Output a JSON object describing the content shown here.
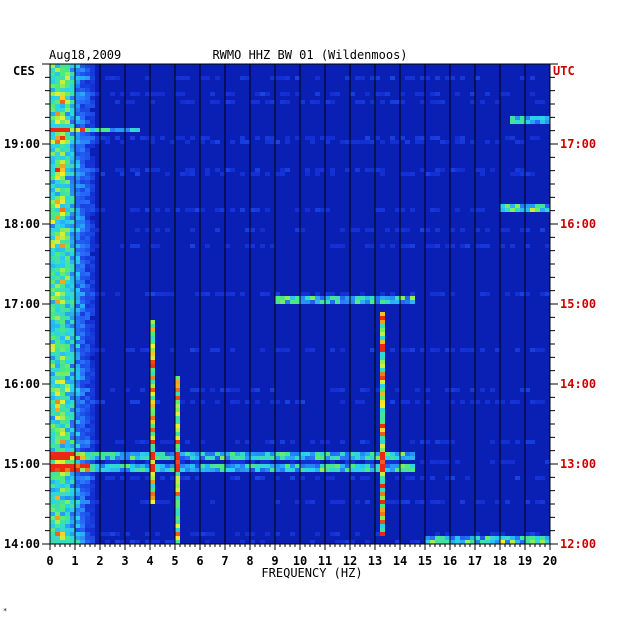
{
  "chart_data": {
    "type": "heatmap",
    "date": "Aug18,2009",
    "title": "RWMO HHZ BW 01 (Wildenmoos)",
    "left_axis_label": "CES",
    "right_axis_label": "UTC",
    "xlabel": "FREQUENCY (HZ)",
    "xlim": [
      0,
      20
    ],
    "x_ticks": [
      "0",
      "1",
      "2",
      "3",
      "4",
      "5",
      "6",
      "7",
      "8",
      "9",
      "10",
      "11",
      "12",
      "13",
      "14",
      "15",
      "16",
      "17",
      "18",
      "19",
      "20"
    ],
    "left_y_ticks": [
      {
        "label": "14:00",
        "hour": 14
      },
      {
        "label": "15:00",
        "hour": 15
      },
      {
        "label": "16:00",
        "hour": 16
      },
      {
        "label": "17:00",
        "hour": 17
      },
      {
        "label": "18:00",
        "hour": 18
      },
      {
        "label": "19:00",
        "hour": 19
      }
    ],
    "right_y_ticks": [
      {
        "label": "12:00",
        "hour": 14
      },
      {
        "label": "13:00",
        "hour": 15
      },
      {
        "label": "14:00",
        "hour": 16
      },
      {
        "label": "15:00",
        "hour": 17
      },
      {
        "label": "16:00",
        "hour": 18
      },
      {
        "label": "17:00",
        "hour": 19
      }
    ],
    "time_range_ces_hours": [
      14,
      20
    ],
    "background_color": "#0a1fb4",
    "grid": "vertical lines at each 1 Hz",
    "features": [
      {
        "kind": "low-frequency energy band",
        "freq_range_hz": [
          0.1,
          1.8
        ],
        "time_range_ces_hours": [
          14,
          20
        ]
      },
      {
        "kind": "vertical spectral line",
        "freq_hz": 4.1,
        "time_range_ces_hours": [
          14.5,
          16.8
        ]
      },
      {
        "kind": "vertical spectral line",
        "freq_hz": 5.15,
        "time_range_ces_hours": [
          14.0,
          16.1
        ],
        "note": "intermittent red/yellow segments"
      },
      {
        "kind": "vertical spectral line",
        "freq_hz": 13.3,
        "time_range_ces_hours": [
          14.1,
          16.9
        ],
        "note": "red near 15:00-14:80"
      },
      {
        "kind": "broadband burst",
        "freq_range_hz": [
          0,
          14.5
        ],
        "time_ces_hours": 14.95
      },
      {
        "kind": "broadband burst",
        "freq_range_hz": [
          0,
          14.5
        ],
        "time_ces_hours": 15.1
      },
      {
        "kind": "broadband burst",
        "freq_range_hz": [
          9,
          14.5
        ],
        "time_ces_hours": 17.05
      },
      {
        "kind": "burst",
        "freq_range_hz": [
          0,
          3.5
        ],
        "time_ces_hours": 19.18
      },
      {
        "kind": "burst",
        "freq_range_hz": [
          18.5,
          20
        ],
        "time_ces_hours": 19.3
      },
      {
        "kind": "burst",
        "freq_range_hz": [
          15,
          20
        ],
        "time_ces_hours": 14.05
      },
      {
        "kind": "burst",
        "freq_range_hz": [
          18,
          20
        ],
        "time_ces_hours": 18.2
      }
    ]
  }
}
